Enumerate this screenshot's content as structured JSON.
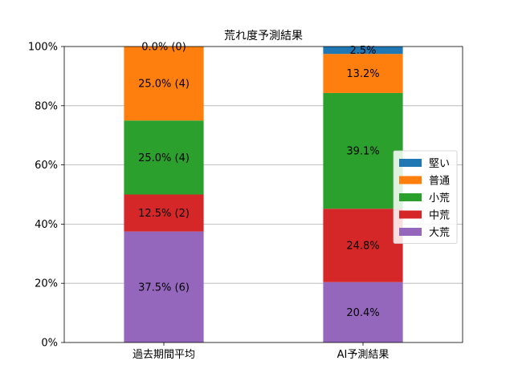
{
  "chart_data": {
    "type": "bar",
    "stacked": true,
    "percent": true,
    "title": "荒れ度予測結果",
    "xlabel": "",
    "ylabel": "",
    "ylim": [
      0,
      100
    ],
    "yticks": [
      "0%",
      "20%",
      "40%",
      "60%",
      "80%",
      "100%"
    ],
    "grid": "horizontal",
    "legend_position": "right",
    "categories": [
      "過去期間平均",
      "AI予測結果"
    ],
    "series": [
      {
        "name": "大荒",
        "color": "#9467bd",
        "values": [
          37.5,
          20.4
        ],
        "labels": [
          "37.5% (6)",
          "20.4%"
        ]
      },
      {
        "name": "中荒",
        "color": "#d62728",
        "values": [
          12.5,
          24.8
        ],
        "labels": [
          "12.5% (2)",
          "24.8%"
        ]
      },
      {
        "name": "小荒",
        "color": "#2ca02c",
        "values": [
          25.0,
          39.1
        ],
        "labels": [
          "25.0% (4)",
          "39.1%"
        ]
      },
      {
        "name": "普通",
        "color": "#ff7f0e",
        "values": [
          25.0,
          13.2
        ],
        "labels": [
          "25.0% (4)",
          "13.2%"
        ]
      },
      {
        "name": "堅い",
        "color": "#1f77b4",
        "values": [
          0.0,
          2.5
        ],
        "labels": [
          "0.0% (0)",
          "2.5%"
        ]
      }
    ],
    "legend_order": [
      "堅い",
      "普通",
      "小荒",
      "中荒",
      "大荒"
    ]
  }
}
